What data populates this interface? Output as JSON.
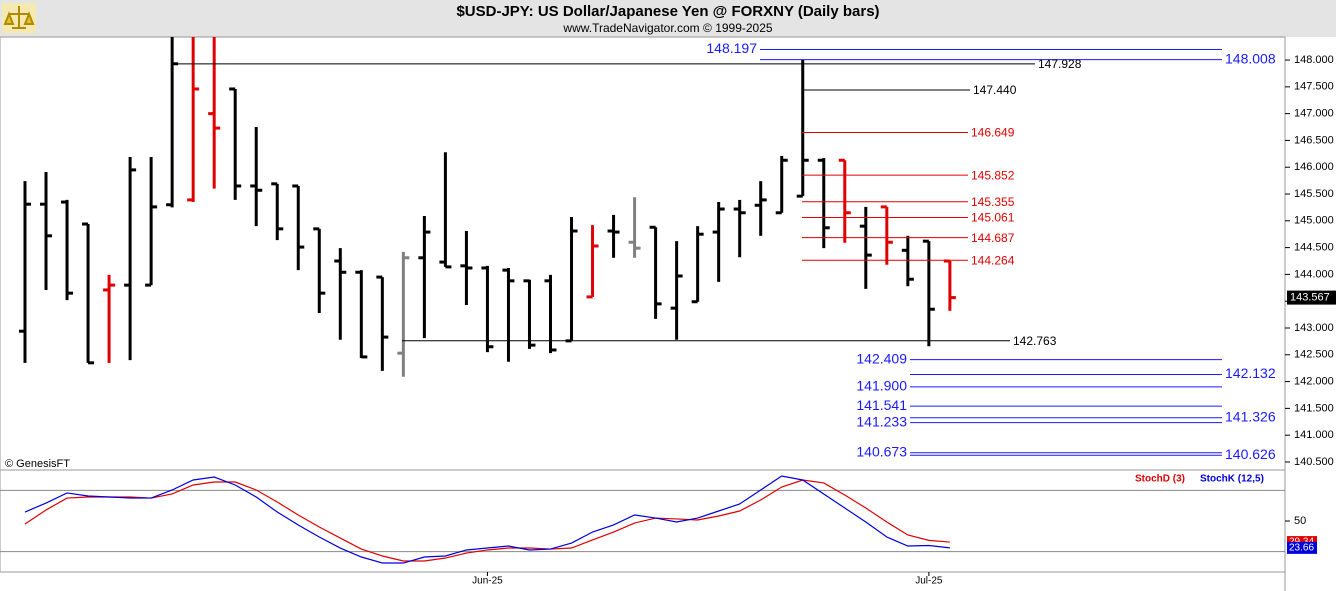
{
  "header": {
    "title": "$USD-JPY:  US Dollar/Japanese Yen @ FORXNY  (Daily bars)",
    "subtitle": "www.TradeNavigator.com © 1999-2025"
  },
  "watermark": "© GenesisFT",
  "chart_data": [
    {
      "type": "ohlc",
      "categories": [
        null,
        null,
        null,
        null,
        null,
        null,
        null,
        null,
        null,
        null,
        null,
        null,
        null,
        null,
        null,
        null,
        null,
        null,
        null,
        null,
        null,
        null,
        "Jun-25",
        null,
        null,
        null,
        null,
        null,
        null,
        null,
        null,
        null,
        null,
        null,
        null,
        null,
        null,
        null,
        null,
        null,
        null,
        null,
        null,
        "Jul-25",
        null
      ],
      "open": [
        142.94,
        145.31,
        145.35,
        144.94,
        143.71,
        143.8,
        143.8,
        145.3,
        145.39,
        147.0,
        147.46,
        145.65,
        145.69,
        145.65,
        144.85,
        144.25,
        144.04,
        143.95,
        142.53,
        144.31,
        144.23,
        144.16,
        144.12,
        144.08,
        143.88,
        143.88,
        142.76,
        143.58,
        144.81,
        144.6,
        144.88,
        143.37,
        143.49,
        144.79,
        145.22,
        145.29,
        145.15,
        145.46,
        146.13,
        146.13,
        144.9,
        145.26,
        144.45,
        144.62,
        144.25
      ],
      "high": [
        145.74,
        145.91,
        145.39,
        144.94,
        143.99,
        146.19,
        146.19,
        148.6,
        148.6,
        148.6,
        147.46,
        146.75,
        145.69,
        145.65,
        144.85,
        144.49,
        144.08,
        143.95,
        144.42,
        145.09,
        146.28,
        144.81,
        144.16,
        144.12,
        143.9,
        143.99,
        145.07,
        144.92,
        145.11,
        145.44,
        144.88,
        144.62,
        144.9,
        145.35,
        145.39,
        145.74,
        146.21,
        148.0,
        146.17,
        146.13,
        145.26,
        145.26,
        144.72,
        144.62,
        144.25
      ],
      "low": [
        142.35,
        143.71,
        143.52,
        142.35,
        142.35,
        142.4,
        143.8,
        145.25,
        145.35,
        145.6,
        145.39,
        144.9,
        144.64,
        144.08,
        143.28,
        142.78,
        142.44,
        142.2,
        142.09,
        142.81,
        144.14,
        143.43,
        142.55,
        142.37,
        142.61,
        142.53,
        142.76,
        143.58,
        144.31,
        144.31,
        143.17,
        142.78,
        143.49,
        143.86,
        144.32,
        144.72,
        145.15,
        145.46,
        144.49,
        144.59,
        143.73,
        144.18,
        143.78,
        142.66,
        143.32
      ],
      "close": [
        145.31,
        144.72,
        143.65,
        142.35,
        143.8,
        145.95,
        145.26,
        147.93,
        147.46,
        146.73,
        145.65,
        145.57,
        144.85,
        144.51,
        143.65,
        144.04,
        142.46,
        142.83,
        144.31,
        144.79,
        144.14,
        144.12,
        142.65,
        143.88,
        142.68,
        142.59,
        144.81,
        144.53,
        144.79,
        144.49,
        143.45,
        143.97,
        144.75,
        145.22,
        145.15,
        145.39,
        146.13,
        146.13,
        144.87,
        145.15,
        144.36,
        144.6,
        143.91,
        143.35,
        143.567
      ],
      "colors": [
        "#000000",
        "#000000",
        "#000000",
        "#000000",
        "#e00000",
        "#000000",
        "#000000",
        "#000000",
        "#e00000",
        "#e00000",
        "#000000",
        "#000000",
        "#000000",
        "#000000",
        "#000000",
        "#000000",
        "#000000",
        "#000000",
        "#808080",
        "#000000",
        "#000000",
        "#000000",
        "#000000",
        "#000000",
        "#000000",
        "#000000",
        "#000000",
        "#e00000",
        "#000000",
        "#808080",
        "#000000",
        "#000000",
        "#000000",
        "#000000",
        "#000000",
        "#000000",
        "#000000",
        "#000000",
        "#000000",
        "#e00000",
        "#000000",
        "#e00000",
        "#000000",
        "#000000",
        "#e00000"
      ],
      "ylim": [
        140.35,
        148.43
      ],
      "yticks": [
        {
          "value": 140.5,
          "label": "140.500"
        },
        {
          "value": 141,
          "label": "141.000"
        },
        {
          "value": 141.5,
          "label": "141.500"
        },
        {
          "value": 142,
          "label": "142.000"
        },
        {
          "value": 142.5,
          "label": "142.500"
        },
        {
          "value": 143,
          "label": "143.000"
        },
        {
          "value": 143.5,
          "label": "143.500"
        },
        {
          "value": 144,
          "label": "144.000"
        },
        {
          "value": 144.5,
          "label": "144.500"
        },
        {
          "value": 145,
          "label": "145.000"
        },
        {
          "value": 145.5,
          "label": "145.500"
        },
        {
          "value": 146,
          "label": "146.000"
        },
        {
          "value": 146.5,
          "label": "146.500"
        },
        {
          "value": 147,
          "label": "147.000"
        },
        {
          "value": 147.5,
          "label": "147.500"
        },
        {
          "value": 148,
          "label": "148.000"
        }
      ],
      "levels": [
        {
          "value": 148.197,
          "label": "148.197",
          "color": "#1a1aff"
        },
        {
          "value": 148.008,
          "label": "148.008",
          "color": "#1a1aff"
        },
        {
          "value": 147.928,
          "label": "147.928",
          "color": "#000000"
        },
        {
          "value": 147.44,
          "label": "147.440",
          "color": "#000000"
        },
        {
          "value": 146.649,
          "label": "146.649",
          "color": "#e00000"
        },
        {
          "value": 145.852,
          "label": "145.852",
          "color": "#e00000"
        },
        {
          "value": 145.355,
          "label": "145.355",
          "color": "#e00000"
        },
        {
          "value": 145.061,
          "label": "145.061",
          "color": "#e00000"
        },
        {
          "value": 144.687,
          "label": "144.687",
          "color": "#e00000"
        },
        {
          "value": 144.264,
          "label": "144.264",
          "color": "#e00000"
        },
        {
          "value": 142.763,
          "label": "142.763",
          "color": "#000000"
        },
        {
          "value": 142.409,
          "label": "142.409",
          "color": "#1a1aff"
        },
        {
          "value": 142.132,
          "label": "142.132",
          "color": "#1a1aff"
        },
        {
          "value": 141.9,
          "label": "141.900",
          "color": "#1a1aff"
        },
        {
          "value": 141.541,
          "label": "141.541",
          "color": "#1a1aff"
        },
        {
          "value": 141.326,
          "label": "141.326",
          "color": "#1a1aff"
        },
        {
          "value": 141.233,
          "label": "141.233",
          "color": "#1a1aff"
        },
        {
          "value": 140.673,
          "label": "140.673",
          "color": "#1a1aff"
        },
        {
          "value": 140.626,
          "label": "140.626",
          "color": "#1a1aff"
        }
      ]
    },
    {
      "type": "line",
      "series": [
        {
          "name": "StochD (3)",
          "color": "#e00000",
          "values": [
            47.1,
            60.8,
            72.5,
            73.5,
            73.5,
            73.5,
            72.5,
            76.5,
            85.3,
            88.2,
            88.2,
            80.4,
            68.6,
            55.9,
            44.1,
            33.3,
            22.5,
            15.7,
            10.8,
            10.8,
            13.7,
            18.6,
            21.6,
            23.5,
            23.5,
            22.5,
            23.5,
            31.4,
            39.2,
            48,
            52.9,
            52,
            51,
            54.9,
            59.8,
            70.6,
            83.3,
            90.2,
            87.3,
            75.5,
            62.7,
            49,
            36.3,
            31,
            29.34
          ]
        },
        {
          "name": "StochK (12,5)",
          "color": "#0000dd",
          "values": [
            58.8,
            67.6,
            77.5,
            74.5,
            73.5,
            72.5,
            72.5,
            80.4,
            90.2,
            93.1,
            85.3,
            73.5,
            58.8,
            46.1,
            34.3,
            23.5,
            14.7,
            8.8,
            8.8,
            14.7,
            15.7,
            21.6,
            23.5,
            25.5,
            21.6,
            22.5,
            28.4,
            39.2,
            46.1,
            55.9,
            52.9,
            49,
            52.9,
            59.8,
            66.7,
            80.4,
            94.1,
            90.2,
            76.5,
            62.7,
            49,
            34.3,
            25.5,
            26,
            23.66
          ]
        }
      ],
      "ylim": [
        0,
        100
      ],
      "yticks": [
        50
      ],
      "ref_lines": [
        20,
        80
      ]
    }
  ]
}
